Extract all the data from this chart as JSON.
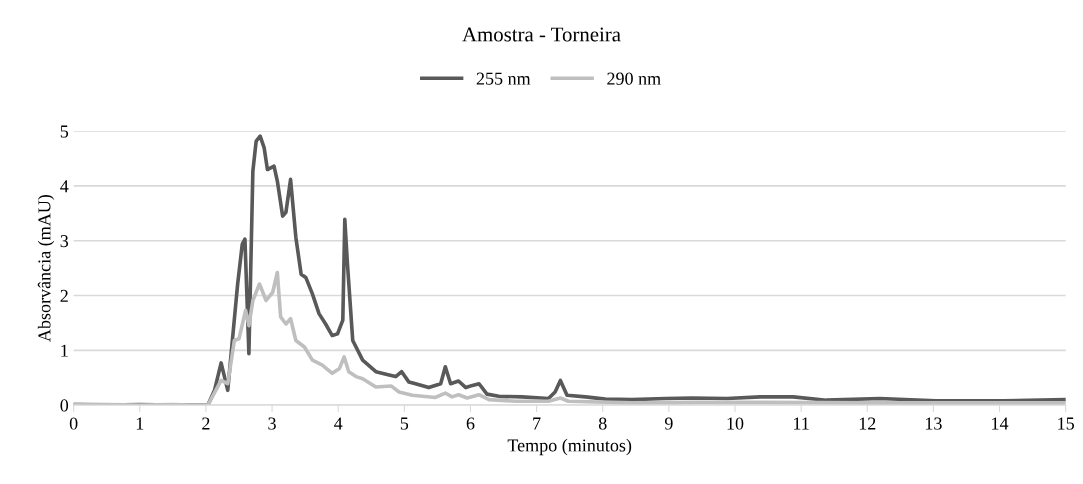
{
  "chart_data": {
    "type": "line",
    "title": "Amostra - Torneira",
    "xlabel": "Tempo (minutos)",
    "ylabel": "Absorvância (mAU)",
    "xlim": [
      0,
      15
    ],
    "xticks": [
      0,
      1,
      2,
      3,
      4,
      5,
      6,
      7,
      8,
      9,
      10,
      11,
      12,
      13,
      14,
      15
    ],
    "ylim": [
      0,
      5
    ],
    "yticks": [
      0,
      1,
      2,
      3,
      4,
      5
    ],
    "grid": "y",
    "legend": "top",
    "marker": "none",
    "line_style": "solid",
    "series": [
      {
        "name": "255 nm",
        "color": "#595959",
        "x": [
          0,
          0.5,
          1.0,
          1.5,
          1.75,
          2.03,
          2.13,
          2.23,
          2.33,
          2.4,
          2.48,
          2.55,
          2.59,
          2.65,
          2.71,
          2.76,
          2.82,
          2.88,
          2.93,
          3.03,
          3.08,
          3.16,
          3.21,
          3.28,
          3.36,
          3.44,
          3.51,
          3.61,
          3.71,
          3.81,
          3.91,
          3.99,
          4.07,
          4.1,
          4.14,
          4.22,
          4.37,
          4.57,
          4.77,
          4.87,
          4.96,
          5.07,
          5.17,
          5.37,
          5.55,
          5.62,
          5.7,
          5.82,
          5.93,
          6.03,
          6.13,
          6.25,
          6.43,
          6.78,
          7.18,
          7.28,
          7.36,
          7.46,
          7.74,
          8.04,
          8.44,
          8.95,
          9.35,
          9.88,
          10.38,
          10.88,
          11.38,
          12.19,
          13.04,
          14.05,
          15.0
        ],
        "values": [
          0.01,
          0.0,
          0.01,
          0.0,
          0.0,
          0.0,
          0.27,
          0.77,
          0.27,
          1.18,
          2.21,
          2.94,
          3.03,
          0.94,
          4.27,
          4.82,
          4.91,
          4.7,
          4.3,
          4.36,
          4.09,
          3.45,
          3.52,
          4.12,
          3.06,
          2.39,
          2.33,
          2.03,
          1.67,
          1.48,
          1.27,
          1.3,
          1.55,
          3.39,
          2.58,
          1.18,
          0.82,
          0.61,
          0.55,
          0.52,
          0.61,
          0.42,
          0.39,
          0.32,
          0.39,
          0.7,
          0.39,
          0.44,
          0.32,
          0.36,
          0.39,
          0.2,
          0.16,
          0.15,
          0.12,
          0.24,
          0.45,
          0.18,
          0.15,
          0.11,
          0.1,
          0.12,
          0.13,
          0.12,
          0.15,
          0.15,
          0.09,
          0.12,
          0.08,
          0.08,
          0.1
        ]
      },
      {
        "name": "290 nm",
        "color": "#bfbfbf",
        "x": [
          0,
          0.5,
          1.0,
          1.5,
          1.75,
          2.03,
          2.23,
          2.33,
          2.43,
          2.5,
          2.6,
          2.65,
          2.71,
          2.81,
          2.91,
          3.01,
          3.08,
          3.13,
          3.21,
          3.28,
          3.36,
          3.49,
          3.61,
          3.76,
          3.91,
          4.02,
          4.09,
          4.16,
          4.27,
          4.37,
          4.57,
          4.8,
          4.92,
          5.12,
          5.47,
          5.62,
          5.72,
          5.82,
          5.95,
          6.13,
          6.28,
          6.68,
          7.18,
          7.36,
          7.48,
          8.44,
          9.4,
          10.5,
          12.0,
          13.5,
          15.0
        ],
        "values": [
          0.02,
          0.01,
          0.0,
          0.01,
          0.0,
          0.0,
          0.45,
          0.39,
          1.18,
          1.21,
          1.73,
          1.45,
          1.91,
          2.21,
          1.91,
          2.06,
          2.42,
          1.61,
          1.48,
          1.58,
          1.18,
          1.06,
          0.82,
          0.73,
          0.58,
          0.67,
          0.88,
          0.61,
          0.52,
          0.48,
          0.33,
          0.35,
          0.24,
          0.18,
          0.14,
          0.22,
          0.15,
          0.19,
          0.13,
          0.19,
          0.1,
          0.07,
          0.07,
          0.13,
          0.07,
          0.04,
          0.05,
          0.05,
          0.04,
          0.04,
          0.04
        ]
      }
    ]
  }
}
